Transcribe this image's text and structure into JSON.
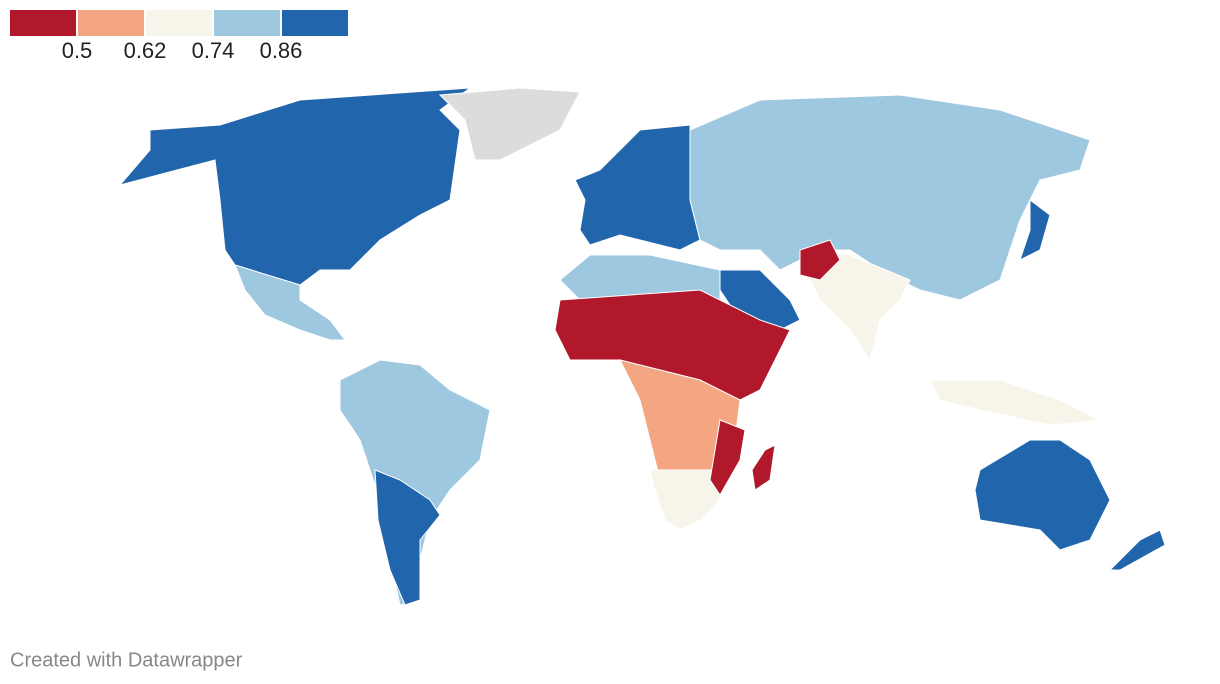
{
  "legend": {
    "colors": [
      "#b2182b",
      "#f4a582",
      "#f7f4e9",
      "#9ec7e0",
      "#2166ac"
    ],
    "ticks": [
      0.5,
      0.62,
      0.74,
      0.86
    ]
  },
  "footer": "Created with Datawrapper"
}
